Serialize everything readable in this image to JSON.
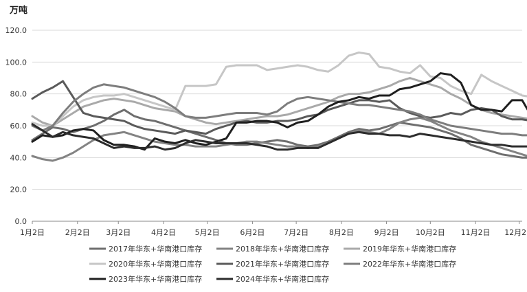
{
  "chart_data": {
    "type": "line",
    "title": "",
    "ylabel": "万吨",
    "xlabel": "",
    "ylim": [
      0,
      120
    ],
    "yticks": [
      "0.0",
      "20.0",
      "40.0",
      "60.0",
      "80.0",
      "100.0",
      "120.0"
    ],
    "xlim": [
      0,
      48
    ],
    "x_ticks": [
      {
        "label": "1月2日",
        "week": 0
      },
      {
        "label": "2月2日",
        "week": 4.43
      },
      {
        "label": "3月2日",
        "week": 8.43
      },
      {
        "label": "4月2日",
        "week": 12.86
      },
      {
        "label": "5月2日",
        "week": 17.14
      },
      {
        "label": "6月2日",
        "week": 21.57
      },
      {
        "label": "7月2日",
        "week": 25.86
      },
      {
        "label": "8月2日",
        "week": 30.29
      },
      {
        "label": "9月2日",
        "week": 34.71
      },
      {
        "label": "10月2日",
        "week": 39.0
      },
      {
        "label": "11月2日",
        "week": 43.43
      },
      {
        "label": "12月2日",
        "week": 47.71
      }
    ],
    "grid": true,
    "legend_position": "bottom",
    "series": [
      {
        "name": "2017年华东+华南港口库存",
        "color": "#6e6e6e",
        "values": [
          51,
          55,
          59,
          58,
          56,
          58,
          60,
          63,
          67,
          70,
          66,
          64,
          63,
          61,
          59,
          57,
          55,
          53,
          51,
          49,
          48,
          48,
          49,
          50,
          51,
          50,
          48,
          47,
          48,
          50,
          53,
          56,
          58,
          57,
          58,
          60,
          62,
          61,
          60,
          59,
          57,
          55,
          52,
          48,
          46,
          44,
          42,
          41,
          40,
          40
        ]
      },
      {
        "name": "2018年华东+华南港口库存",
        "color": "#838383",
        "values": [
          41,
          39,
          38,
          40,
          43,
          47,
          51,
          54,
          55,
          56,
          54,
          52,
          50,
          49,
          48,
          48,
          47,
          47,
          47,
          48,
          49,
          50,
          50,
          49,
          48,
          47,
          47,
          46,
          47,
          49,
          52,
          55,
          57,
          56,
          55,
          58,
          62,
          64,
          65,
          63,
          60,
          57,
          55,
          53,
          50,
          48,
          46,
          44,
          42,
          40
        ]
      },
      {
        "name": "2019年华东+华南港口库存",
        "color": "#a9a9a9",
        "values": [
          66,
          62,
          60,
          64,
          68,
          72,
          74,
          76,
          77,
          76,
          75,
          73,
          71,
          70,
          69,
          66,
          64,
          62,
          61,
          62,
          63,
          64,
          65,
          66,
          66,
          67,
          69,
          71,
          73,
          75,
          78,
          80,
          80,
          81,
          83,
          85,
          88,
          90,
          88,
          86,
          84,
          80,
          77,
          73,
          70,
          68,
          67,
          66,
          65,
          64
        ]
      },
      {
        "name": "2020年华东+华南港口库存",
        "color": "#c6c6c6",
        "values": [
          62,
          60,
          60,
          66,
          72,
          76,
          78,
          79,
          79,
          80,
          78,
          76,
          74,
          72,
          70,
          85,
          85,
          85,
          86,
          97,
          98,
          98,
          98,
          95,
          96,
          97,
          98,
          97,
          95,
          94,
          98,
          104,
          106,
          105,
          97,
          96,
          94,
          93,
          98,
          91,
          90,
          85,
          82,
          80,
          92,
          88,
          85,
          82,
          79,
          78
        ]
      },
      {
        "name": "2021年华东+华南港口库存",
        "color": "#5a5a5a",
        "values": [
          77,
          81,
          84,
          88,
          78,
          68,
          66,
          65,
          64,
          63,
          60,
          58,
          57,
          56,
          55,
          57,
          56,
          55,
          58,
          60,
          62,
          63,
          62,
          62,
          63,
          63,
          64,
          66,
          67,
          70,
          72,
          74,
          76,
          76,
          75,
          76,
          71,
          68,
          66,
          65,
          66,
          68,
          67,
          70,
          71,
          70,
          66,
          64,
          64,
          63
        ]
      },
      {
        "name": "2022年华东+华南港口库存",
        "color": "#7d7d7d",
        "values": [
          60,
          57,
          60,
          68,
          75,
          80,
          84,
          86,
          85,
          84,
          82,
          80,
          78,
          75,
          71,
          66,
          65,
          65,
          66,
          67,
          68,
          68,
          68,
          67,
          69,
          74,
          77,
          78,
          77,
          76,
          75,
          74,
          73,
          73,
          72,
          71,
          70,
          69,
          67,
          64,
          62,
          60,
          59,
          58,
          57,
          56,
          55,
          55,
          54,
          54
        ]
      },
      {
        "name": "2023年华东+华南港口库存",
        "color": "#1f1f1f",
        "values": [
          50,
          54,
          53,
          54,
          57,
          58,
          57,
          51,
          48,
          48,
          47,
          45,
          52,
          50,
          49,
          51,
          49,
          48,
          50,
          52,
          62,
          62,
          63,
          63,
          62,
          59,
          62,
          63,
          67,
          72,
          75,
          76,
          78,
          77,
          79,
          79,
          83,
          84,
          86,
          88,
          93,
          92,
          87,
          73,
          70,
          70,
          69,
          76,
          76,
          65
        ]
      },
      {
        "name": "2024年华东+华南港口库存",
        "color": "#2c2c2c",
        "values": [
          61,
          57,
          53,
          56,
          54,
          53,
          52,
          49,
          46,
          47,
          46,
          46,
          47,
          45,
          46,
          49,
          51,
          50,
          49,
          49,
          49,
          49,
          48,
          47,
          45,
          45,
          46,
          46,
          46,
          49,
          52,
          55,
          56,
          55,
          55,
          54,
          54,
          53,
          55,
          54,
          53,
          52,
          51,
          50,
          49,
          48,
          48,
          47,
          47,
          47
        ]
      }
    ]
  }
}
